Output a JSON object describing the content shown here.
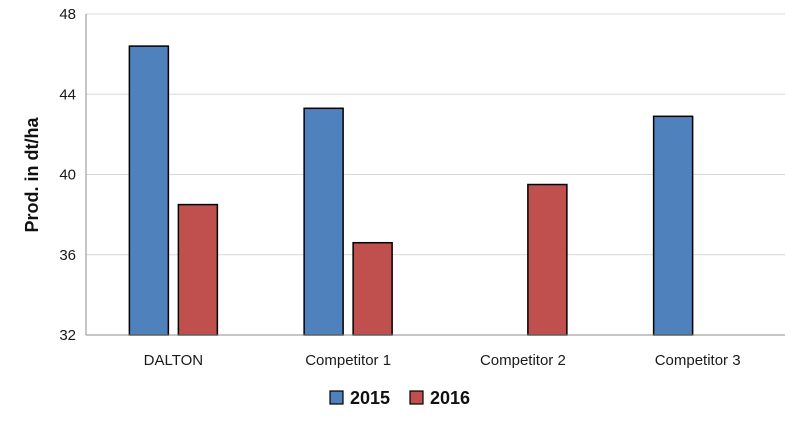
{
  "chart_data": {
    "type": "bar",
    "title": "",
    "xlabel": "",
    "ylabel": "Prod. in dt/ha",
    "ylim": [
      32,
      48
    ],
    "yticks": [
      32,
      36,
      40,
      44,
      48
    ],
    "grid": true,
    "legend_position": "bottom",
    "categories": [
      "DALTON",
      "Competitor 1",
      "Competitor 2",
      "Competitor 3"
    ],
    "series": [
      {
        "name": "2015",
        "color": "#4f81bd",
        "values": [
          46.4,
          43.3,
          null,
          42.9
        ]
      },
      {
        "name": "2016",
        "color": "#c0504d",
        "values": [
          38.5,
          36.6,
          39.5,
          null
        ]
      }
    ]
  }
}
